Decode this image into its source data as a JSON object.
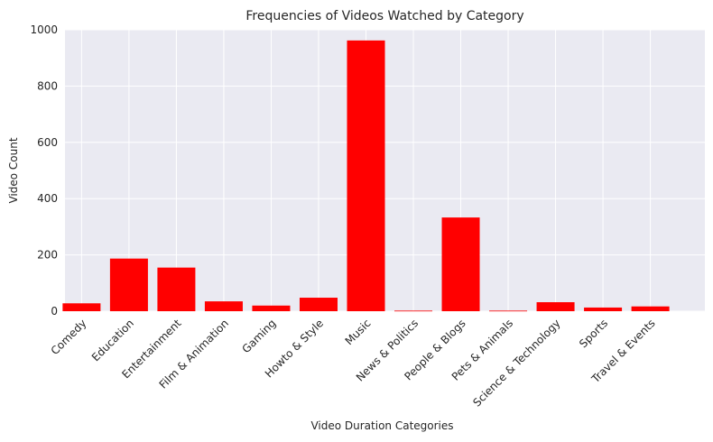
{
  "chart_data": {
    "type": "bar",
    "title": "Frequencies of Videos Watched by Category",
    "xlabel": "Video Duration Categories",
    "ylabel": "Video Count",
    "categories": [
      "Comedy",
      "Education",
      "Entertainment",
      "Film & Animation",
      "Gaming",
      "Howto & Style",
      "Music",
      "News & Politics",
      "People & Blogs",
      "Pets & Animals",
      "Science & Technology",
      "Sports",
      "Travel & Events"
    ],
    "values": [
      28,
      187,
      155,
      35,
      20,
      48,
      962,
      2,
      333,
      2,
      32,
      13,
      17
    ],
    "ylim": [
      0,
      1000
    ],
    "yticks": [
      0,
      200,
      400,
      600,
      800,
      1000
    ],
    "bar_color": "#ff0000",
    "plot_background": "#eaeaf2",
    "grid": true
  }
}
